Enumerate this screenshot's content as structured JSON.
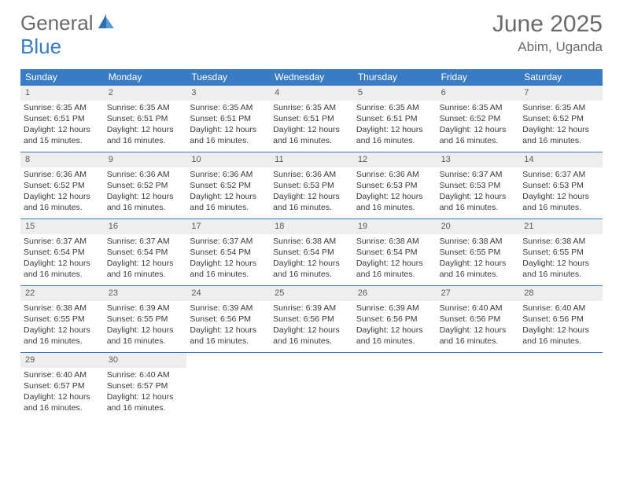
{
  "logo": {
    "text1": "General",
    "text2": "Blue"
  },
  "title": "June 2025",
  "location": "Abim, Uganda",
  "dow": [
    "Sunday",
    "Monday",
    "Tuesday",
    "Wednesday",
    "Thursday",
    "Friday",
    "Saturday"
  ],
  "colors": {
    "header_bg": "#3a7cc4",
    "daynum_bg": "#eeeeee",
    "text": "#3a3a3a",
    "title_text": "#6a6a6a"
  },
  "weeks": [
    [
      {
        "n": "1",
        "sr": "6:35 AM",
        "ss": "6:51 PM",
        "dl": "12 hours and 15 minutes."
      },
      {
        "n": "2",
        "sr": "6:35 AM",
        "ss": "6:51 PM",
        "dl": "12 hours and 16 minutes."
      },
      {
        "n": "3",
        "sr": "6:35 AM",
        "ss": "6:51 PM",
        "dl": "12 hours and 16 minutes."
      },
      {
        "n": "4",
        "sr": "6:35 AM",
        "ss": "6:51 PM",
        "dl": "12 hours and 16 minutes."
      },
      {
        "n": "5",
        "sr": "6:35 AM",
        "ss": "6:51 PM",
        "dl": "12 hours and 16 minutes."
      },
      {
        "n": "6",
        "sr": "6:35 AM",
        "ss": "6:52 PM",
        "dl": "12 hours and 16 minutes."
      },
      {
        "n": "7",
        "sr": "6:35 AM",
        "ss": "6:52 PM",
        "dl": "12 hours and 16 minutes."
      }
    ],
    [
      {
        "n": "8",
        "sr": "6:36 AM",
        "ss": "6:52 PM",
        "dl": "12 hours and 16 minutes."
      },
      {
        "n": "9",
        "sr": "6:36 AM",
        "ss": "6:52 PM",
        "dl": "12 hours and 16 minutes."
      },
      {
        "n": "10",
        "sr": "6:36 AM",
        "ss": "6:52 PM",
        "dl": "12 hours and 16 minutes."
      },
      {
        "n": "11",
        "sr": "6:36 AM",
        "ss": "6:53 PM",
        "dl": "12 hours and 16 minutes."
      },
      {
        "n": "12",
        "sr": "6:36 AM",
        "ss": "6:53 PM",
        "dl": "12 hours and 16 minutes."
      },
      {
        "n": "13",
        "sr": "6:37 AM",
        "ss": "6:53 PM",
        "dl": "12 hours and 16 minutes."
      },
      {
        "n": "14",
        "sr": "6:37 AM",
        "ss": "6:53 PM",
        "dl": "12 hours and 16 minutes."
      }
    ],
    [
      {
        "n": "15",
        "sr": "6:37 AM",
        "ss": "6:54 PM",
        "dl": "12 hours and 16 minutes."
      },
      {
        "n": "16",
        "sr": "6:37 AM",
        "ss": "6:54 PM",
        "dl": "12 hours and 16 minutes."
      },
      {
        "n": "17",
        "sr": "6:37 AM",
        "ss": "6:54 PM",
        "dl": "12 hours and 16 minutes."
      },
      {
        "n": "18",
        "sr": "6:38 AM",
        "ss": "6:54 PM",
        "dl": "12 hours and 16 minutes."
      },
      {
        "n": "19",
        "sr": "6:38 AM",
        "ss": "6:54 PM",
        "dl": "12 hours and 16 minutes."
      },
      {
        "n": "20",
        "sr": "6:38 AM",
        "ss": "6:55 PM",
        "dl": "12 hours and 16 minutes."
      },
      {
        "n": "21",
        "sr": "6:38 AM",
        "ss": "6:55 PM",
        "dl": "12 hours and 16 minutes."
      }
    ],
    [
      {
        "n": "22",
        "sr": "6:38 AM",
        "ss": "6:55 PM",
        "dl": "12 hours and 16 minutes."
      },
      {
        "n": "23",
        "sr": "6:39 AM",
        "ss": "6:55 PM",
        "dl": "12 hours and 16 minutes."
      },
      {
        "n": "24",
        "sr": "6:39 AM",
        "ss": "6:56 PM",
        "dl": "12 hours and 16 minutes."
      },
      {
        "n": "25",
        "sr": "6:39 AM",
        "ss": "6:56 PM",
        "dl": "12 hours and 16 minutes."
      },
      {
        "n": "26",
        "sr": "6:39 AM",
        "ss": "6:56 PM",
        "dl": "12 hours and 16 minutes."
      },
      {
        "n": "27",
        "sr": "6:40 AM",
        "ss": "6:56 PM",
        "dl": "12 hours and 16 minutes."
      },
      {
        "n": "28",
        "sr": "6:40 AM",
        "ss": "6:56 PM",
        "dl": "12 hours and 16 minutes."
      }
    ],
    [
      {
        "n": "29",
        "sr": "6:40 AM",
        "ss": "6:57 PM",
        "dl": "12 hours and 16 minutes."
      },
      {
        "n": "30",
        "sr": "6:40 AM",
        "ss": "6:57 PM",
        "dl": "12 hours and 16 minutes."
      },
      null,
      null,
      null,
      null,
      null
    ]
  ],
  "labels": {
    "sunrise": "Sunrise: ",
    "sunset": "Sunset: ",
    "daylight": "Daylight: "
  }
}
